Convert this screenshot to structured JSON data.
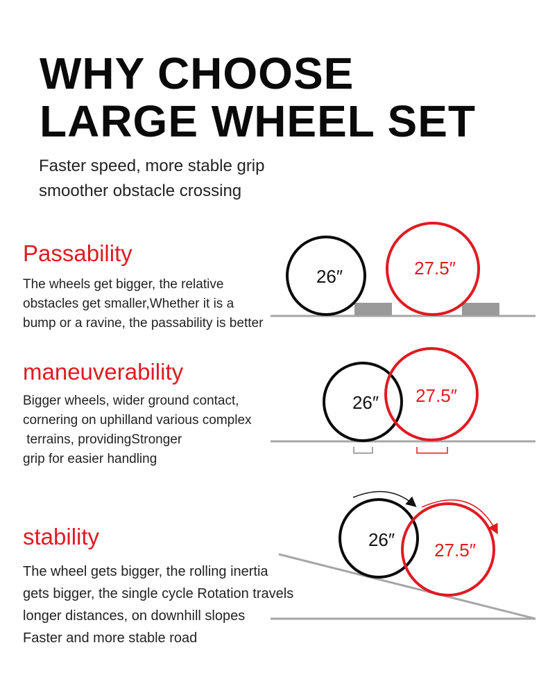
{
  "header": {
    "title_line1": "WHY CHOOSE",
    "title_line2": "LARGE WHEEL SET",
    "subtitle_line1": "Faster speed, more stable grip",
    "subtitle_line2": "smoother obstacle crossing"
  },
  "sections": [
    {
      "heading": "Passability",
      "lines": [
        "The wheels get bigger, the relative",
        "obstacles get smaller,Whether it is a",
        "bump or a ravine, the passability is better"
      ],
      "small_wheel_label": "26″",
      "large_wheel_label": "27.5″"
    },
    {
      "heading": "maneuverability",
      "lines": [
        "Bigger wheels, wider ground contact,",
        "cornering on uphilland various complex",
        " terrains, providingStronger",
        "grip for easier handling"
      ],
      "small_wheel_label": "26″",
      "large_wheel_label": "27.5″"
    },
    {
      "heading": "stability",
      "lines": [
        "The wheel gets bigger, the rolling inertia",
        "gets bigger, the single cycle Rotation travels",
        "longer distances, on downhill slopes",
        "Faster and more stable road"
      ],
      "small_wheel_label": "26″",
      "large_wheel_label": "27.5″"
    }
  ],
  "colors": {
    "accent": "#e01a22",
    "dark": "#0a0a0a",
    "ground": "#a6a6a6",
    "obstacle": "#9a9a9a"
  }
}
